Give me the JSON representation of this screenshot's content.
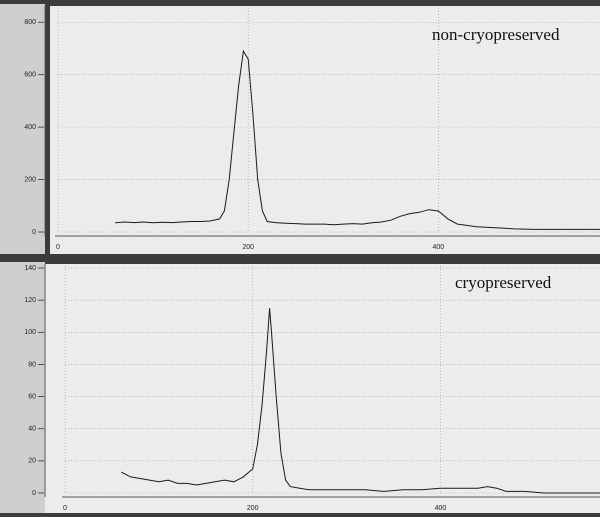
{
  "chart_data": [
    {
      "type": "line",
      "annotation": "non-cryopreserved",
      "x": [
        60,
        70,
        80,
        90,
        100,
        110,
        120,
        130,
        140,
        150,
        160,
        170,
        175,
        180,
        185,
        190,
        195,
        200,
        205,
        210,
        215,
        220,
        230,
        240,
        250,
        260,
        270,
        280,
        290,
        300,
        310,
        320,
        330,
        340,
        350,
        360,
        370,
        380,
        390,
        400,
        410,
        420,
        430,
        440,
        450,
        460,
        470,
        480,
        490,
        500,
        510,
        520,
        530,
        540,
        550,
        560,
        570
      ],
      "series": [
        {
          "color": "#1a1a1a",
          "values": [
            35,
            38,
            36,
            38,
            35,
            37,
            36,
            38,
            40,
            40,
            42,
            50,
            80,
            200,
            380,
            560,
            690,
            660,
            450,
            200,
            80,
            40,
            35,
            33,
            32,
            30,
            30,
            30,
            28,
            30,
            32,
            30,
            35,
            38,
            45,
            60,
            70,
            75,
            85,
            80,
            50,
            30,
            25,
            20,
            18,
            16,
            14,
            12,
            11,
            10,
            10,
            10,
            10,
            10,
            10,
            10,
            10
          ]
        }
      ],
      "xlim": [
        0,
        570
      ],
      "ylim": [
        0,
        820
      ],
      "xticks": [
        0,
        200,
        400
      ],
      "yticks": [
        0,
        200,
        400,
        600,
        800
      ],
      "grid": true
    },
    {
      "type": "line",
      "annotation": "cryopreserved",
      "x": [
        60,
        70,
        80,
        90,
        100,
        110,
        120,
        130,
        140,
        150,
        160,
        170,
        180,
        190,
        200,
        205,
        210,
        215,
        218,
        220,
        225,
        230,
        235,
        240,
        250,
        260,
        280,
        300,
        320,
        340,
        360,
        380,
        400,
        420,
        440,
        450,
        460,
        470,
        490,
        510,
        530,
        550,
        570
      ],
      "series": [
        {
          "color": "#1a1a1a",
          "values": [
            13,
            10,
            9,
            8,
            7,
            8,
            6,
            6,
            5,
            6,
            7,
            8,
            7,
            10,
            15,
            30,
            55,
            90,
            115,
            100,
            60,
            25,
            8,
            4,
            3,
            2,
            2,
            2,
            2,
            1,
            2,
            2,
            3,
            3,
            3,
            4,
            3,
            1,
            1,
            0,
            0,
            0,
            0
          ]
        }
      ],
      "xlim": [
        0,
        570
      ],
      "ylim": [
        0,
        145
      ],
      "xticks": [
        0,
        200,
        400
      ],
      "yticks": [
        0,
        20,
        40,
        60,
        80,
        100,
        120,
        140
      ],
      "grid": true
    }
  ]
}
